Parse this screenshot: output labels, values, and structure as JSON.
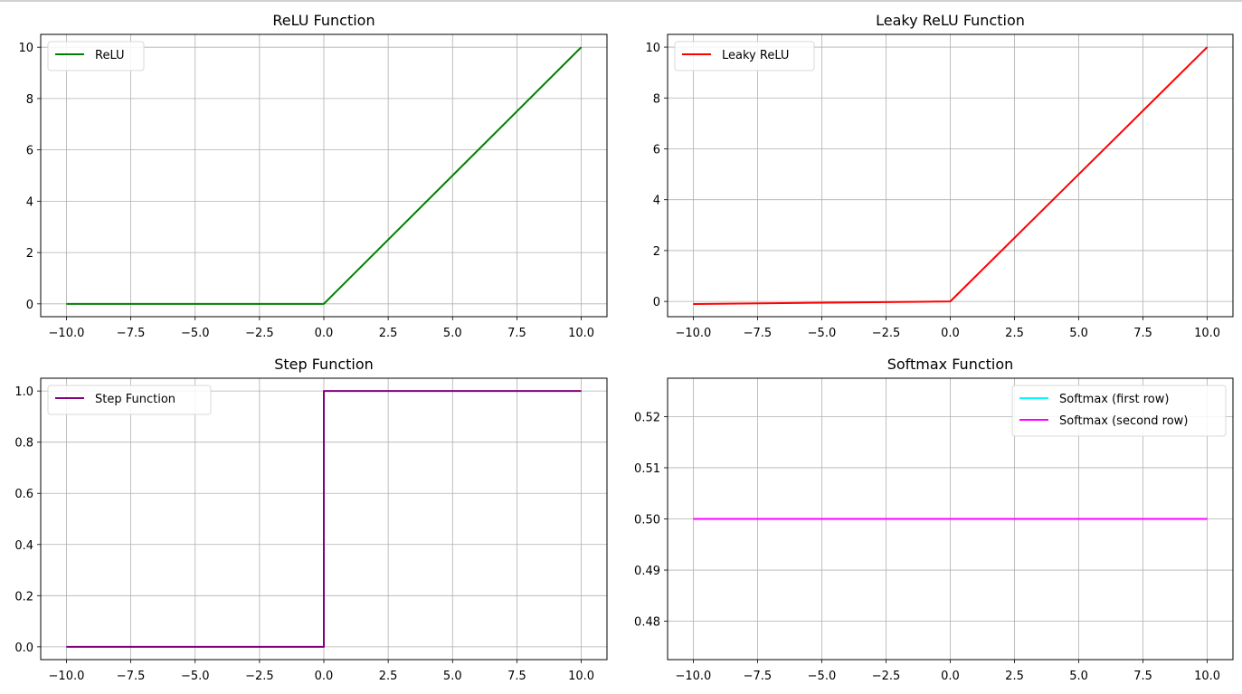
{
  "chart_data": [
    {
      "type": "line",
      "title": "ReLU Function",
      "xlim": [
        -11.0,
        11.0
      ],
      "ylim": [
        -0.5,
        10.5
      ],
      "xticks": [
        -10.0,
        -7.5,
        -5.0,
        -2.5,
        0.0,
        2.5,
        5.0,
        7.5,
        10.0
      ],
      "xtick_labels": [
        "−10.0",
        "−7.5",
        "−5.0",
        "−2.5",
        "0.0",
        "2.5",
        "5.0",
        "7.5",
        "10.0"
      ],
      "yticks": [
        0,
        2,
        4,
        6,
        8,
        10
      ],
      "ytick_labels": [
        "0",
        "2",
        "4",
        "6",
        "8",
        "10"
      ],
      "grid": true,
      "legend": "upper-left",
      "series": [
        {
          "name": "ReLU",
          "color": "#008000",
          "x": [
            -10,
            0,
            10
          ],
          "y": [
            0,
            0,
            10
          ]
        }
      ]
    },
    {
      "type": "line",
      "title": "Leaky ReLU Function",
      "xlim": [
        -11.0,
        11.0
      ],
      "ylim": [
        -0.6,
        10.5
      ],
      "xticks": [
        -10.0,
        -7.5,
        -5.0,
        -2.5,
        0.0,
        2.5,
        5.0,
        7.5,
        10.0
      ],
      "xtick_labels": [
        "−10.0",
        "−7.5",
        "−5.0",
        "−2.5",
        "0.0",
        "2.5",
        "5.0",
        "7.5",
        "10.0"
      ],
      "yticks": [
        0,
        2,
        4,
        6,
        8,
        10
      ],
      "ytick_labels": [
        "0",
        "2",
        "4",
        "6",
        "8",
        "10"
      ],
      "grid": true,
      "legend": "upper-left",
      "series": [
        {
          "name": "Leaky ReLU",
          "color": "#ff0000",
          "x": [
            -10,
            0,
            10
          ],
          "y": [
            -0.1,
            0,
            10
          ]
        }
      ]
    },
    {
      "type": "line",
      "title": "Step Function",
      "xlim": [
        -11.0,
        11.0
      ],
      "ylim": [
        -0.05,
        1.05
      ],
      "xticks": [
        -10.0,
        -7.5,
        -5.0,
        -2.5,
        0.0,
        2.5,
        5.0,
        7.5,
        10.0
      ],
      "xtick_labels": [
        "−10.0",
        "−7.5",
        "−5.0",
        "−2.5",
        "0.0",
        "2.5",
        "5.0",
        "7.5",
        "10.0"
      ],
      "yticks": [
        0.0,
        0.2,
        0.4,
        0.6,
        0.8,
        1.0
      ],
      "ytick_labels": [
        "0.0",
        "0.2",
        "0.4",
        "0.6",
        "0.8",
        "1.0"
      ],
      "grid": true,
      "legend": "upper-left",
      "series": [
        {
          "name": "Step Function",
          "color": "#800080",
          "x": [
            -10,
            0,
            0,
            10
          ],
          "y": [
            0,
            0,
            1,
            1
          ]
        }
      ]
    },
    {
      "type": "line",
      "title": "Softmax Function",
      "xlim": [
        -11.0,
        11.0
      ],
      "ylim": [
        0.4725,
        0.5275
      ],
      "xticks": [
        -10.0,
        -7.5,
        -5.0,
        -2.5,
        0.0,
        2.5,
        5.0,
        7.5,
        10.0
      ],
      "xtick_labels": [
        "−10.0",
        "−7.5",
        "−5.0",
        "−2.5",
        "0.0",
        "2.5",
        "5.0",
        "7.5",
        "10.0"
      ],
      "yticks": [
        0.48,
        0.49,
        0.5,
        0.51,
        0.52
      ],
      "ytick_labels": [
        "0.48",
        "0.49",
        "0.50",
        "0.51",
        "0.52"
      ],
      "grid": true,
      "legend": "upper-right",
      "series": [
        {
          "name": "Softmax (first row)",
          "color": "#00ffff",
          "x": [
            -10,
            10
          ],
          "y": [
            0.5,
            0.5
          ]
        },
        {
          "name": "Softmax (second row)",
          "color": "#ff00ff",
          "x": [
            -10,
            10
          ],
          "y": [
            0.5,
            0.5
          ]
        }
      ]
    }
  ]
}
